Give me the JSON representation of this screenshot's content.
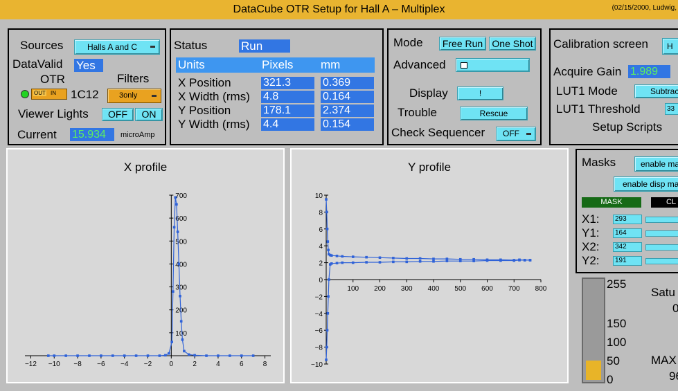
{
  "window": {
    "title": "DataCube  OTR  Setup  for  Hall A – Multiplex",
    "date_author": "(02/15/2000, Ludwig,"
  },
  "sources_panel": {
    "sources_label": "Sources",
    "sources_value": "Halls A and C",
    "datavalid_label": "DataValid",
    "datavalid_value": "Yes",
    "otr_label": "OTR",
    "otr_out": "OUT",
    "otr_in": "IN",
    "otr_id": "1C12",
    "filters_label": "Filters",
    "filters_value": "3only",
    "viewer_lights_label": "Viewer Lights",
    "off_label": "OFF",
    "on_label": "ON",
    "current_label": "Current",
    "current_value": "15.934",
    "current_unit": "microAmp"
  },
  "status_panel": {
    "status_label": "Status",
    "status_value": "Run",
    "headers": [
      "Units",
      "Pixels",
      "mm"
    ],
    "rows": [
      {
        "label": "X Position",
        "pixels": "321.3",
        "mm": "0.369"
      },
      {
        "label": "X Width (rms)",
        "pixels": "4.8",
        "mm": "0.164"
      },
      {
        "label": "Y Position",
        "pixels": "178.1",
        "mm": "2.374"
      },
      {
        "label": "Y Width (rms)",
        "pixels": "4.4",
        "mm": "0.154"
      }
    ]
  },
  "mode_panel": {
    "mode_label": "Mode",
    "free_run": "Free Run",
    "one_shot": "One Shot",
    "advanced_label": "Advanced",
    "advanced_icon": "window-icon",
    "display_label": "Display",
    "display_button": "!",
    "trouble_label": "Trouble",
    "rescue_button": "Rescue",
    "check_sequencer_label": "Check Sequencer",
    "check_sequencer_value": "OFF"
  },
  "calib_panel": {
    "calibration_label": "Calibration screen",
    "calibration_button": "H",
    "acquire_gain_label": "Acquire Gain",
    "acquire_gain_value": "1.989",
    "lut1_mode_label": "LUT1 Mode",
    "lut1_mode_value": "Subtrac",
    "lut1_threshold_label": "LUT1 Threshold",
    "lut1_threshold_value": "33",
    "setup_scripts_label": "Setup Scripts"
  },
  "masks_panel": {
    "masks_label": "Masks",
    "enable_mask_button": "enable ma",
    "enable_disp_mask_button": "enable disp ma",
    "mask_indicator": "MASK",
    "clear_indicator": "CL",
    "fields": [
      {
        "label": "X1:",
        "value": "293"
      },
      {
        "label": "Y1:",
        "value": "164"
      },
      {
        "label": "X2:",
        "value": "342"
      },
      {
        "label": "Y2:",
        "value": "191"
      }
    ]
  },
  "meter": {
    "ticks": [
      "255",
      "150",
      "100",
      "50",
      "0"
    ],
    "fill_value": 50,
    "max_value": 255,
    "satu_label": "Satu",
    "satu_value": "0",
    "max_label": "MAX",
    "max_value_text": "96"
  },
  "colors": {
    "accent": "#e9b430",
    "button": "#6fe3f4",
    "value_bg": "#3276e3",
    "plot_line": "#2f62d8",
    "green": "#5ef05e"
  },
  "chart_data": [
    {
      "type": "line",
      "title": "X profile",
      "xlabel": "",
      "ylabel": "",
      "xlim": [
        -12.5,
        8.5
      ],
      "ylim": [
        0,
        700
      ],
      "xticks": [
        -12,
        -10,
        -8,
        -6,
        -4,
        -2,
        0,
        2,
        4,
        6,
        8
      ],
      "yticks": [
        100,
        200,
        300,
        400,
        500,
        600,
        700
      ],
      "series": [
        {
          "x": [
            -10.5,
            -10,
            -9,
            -8,
            -7,
            -6,
            -5,
            -4,
            -3,
            -2,
            -1,
            -0.5,
            -0.2,
            0.05,
            0.15,
            0.25,
            0.35,
            0.45,
            0.55,
            0.65,
            0.75,
            0.85,
            0.95,
            1.1,
            1.5,
            2,
            3,
            4,
            5,
            6,
            7
          ],
          "y": [
            0,
            0,
            0,
            0,
            0,
            0,
            0,
            0,
            0,
            0,
            0,
            2,
            10,
            60,
            280,
            560,
            690,
            660,
            540,
            400,
            260,
            150,
            70,
            20,
            5,
            2,
            0,
            0,
            0,
            0,
            0
          ]
        }
      ]
    },
    {
      "type": "line",
      "title": "Y profile",
      "xlabel": "",
      "ylabel": "",
      "xlim": [
        0,
        800
      ],
      "ylim": [
        -10,
        10
      ],
      "xticks": [
        100,
        200,
        300,
        400,
        500,
        600,
        700,
        800
      ],
      "yticks": [
        -10,
        -8,
        -6,
        -4,
        -2,
        0,
        2,
        4,
        6,
        8,
        10
      ],
      "series": [
        {
          "name": "upper",
          "x": [
            0,
            2,
            4,
            6,
            8,
            10,
            15,
            20,
            40,
            60,
            100,
            150,
            200,
            250,
            300,
            350,
            400,
            450,
            500,
            550,
            600,
            650,
            700,
            720,
            740,
            760
          ],
          "y": [
            9.5,
            8,
            6,
            4.5,
            3.5,
            3.0,
            2.9,
            2.85,
            2.8,
            2.75,
            2.7,
            2.65,
            2.6,
            2.55,
            2.5,
            2.5,
            2.45,
            2.45,
            2.4,
            2.4,
            2.35,
            2.35,
            2.3,
            2.35,
            2.3,
            2.3
          ]
        },
        {
          "name": "lower",
          "x": [
            0,
            2,
            4,
            6,
            8,
            10,
            15,
            20,
            40,
            60,
            100,
            150,
            200,
            250,
            300,
            350,
            400,
            450,
            500,
            550,
            600,
            650,
            700,
            720,
            740,
            760
          ],
          "y": [
            -9.5,
            -8,
            -6,
            -4,
            -2,
            0,
            1.8,
            1.9,
            1.95,
            2.0,
            2.0,
            2.05,
            2.05,
            2.1,
            2.1,
            2.15,
            2.15,
            2.2,
            2.2,
            2.2,
            2.25,
            2.25,
            2.25,
            2.3,
            2.3,
            2.3
          ]
        }
      ]
    }
  ]
}
